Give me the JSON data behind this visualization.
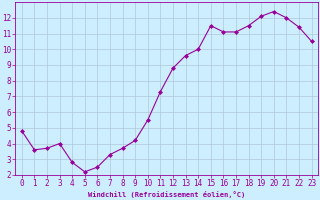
{
  "x": [
    0,
    1,
    2,
    3,
    4,
    5,
    6,
    7,
    8,
    9,
    10,
    11,
    12,
    13,
    14,
    15,
    16,
    17,
    18,
    19,
    20,
    21,
    22,
    23
  ],
  "y": [
    4.8,
    3.6,
    3.7,
    4.0,
    2.8,
    2.2,
    2.5,
    3.3,
    3.7,
    4.2,
    5.5,
    7.3,
    8.8,
    9.6,
    10.0,
    11.5,
    11.1,
    11.1,
    11.5,
    12.1,
    12.4,
    12.0,
    11.4,
    10.5
  ],
  "xlabel": "Windchill (Refroidissement éolien,°C)",
  "ylim": [
    2,
    13
  ],
  "xlim": [
    -0.5,
    23.5
  ],
  "yticks": [
    2,
    3,
    4,
    5,
    6,
    7,
    8,
    9,
    10,
    11,
    12
  ],
  "xticks": [
    0,
    1,
    2,
    3,
    4,
    5,
    6,
    7,
    8,
    9,
    10,
    11,
    12,
    13,
    14,
    15,
    16,
    17,
    18,
    19,
    20,
    21,
    22,
    23
  ],
  "line_color": "#990099",
  "marker": "D",
  "marker_size": 2.0,
  "bg_color": "#cceeff",
  "grid_color": "#b0c8d8",
  "font_color": "#990099",
  "xlabel_fontsize": 5.0,
  "tick_fontsize": 5.5
}
